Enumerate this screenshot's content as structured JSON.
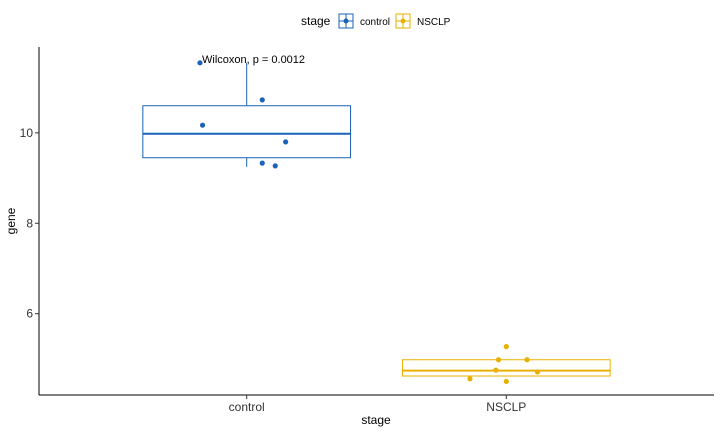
{
  "chart_data": {
    "type": "boxplot",
    "legend": {
      "title": "stage",
      "position": "top",
      "entries": [
        {
          "label": "control",
          "color": "#1a63b8"
        },
        {
          "label": "NSCLP",
          "color": "#e8b100"
        }
      ]
    },
    "xlabel": "stage",
    "ylabel": "gene",
    "categories": [
      "control",
      "NSCLP"
    ],
    "ylim": [
      4.2,
      11.9
    ],
    "yticks": [
      6,
      8,
      10
    ],
    "ytick_labels": [
      "6",
      "8",
      "10"
    ],
    "grid": false,
    "annotation": "Wilcoxon, p = 0.0012",
    "groups": [
      {
        "name": "control",
        "color": "#1a63b8",
        "box": {
          "min": 9.25,
          "q1": 9.45,
          "median": 9.98,
          "q3": 10.6,
          "max": 11.55
        },
        "points": [
          {
            "x": -0.18,
            "y": 11.55
          },
          {
            "x": -0.17,
            "y": 10.17
          },
          {
            "x": 0.06,
            "y": 10.73
          },
          {
            "x": 0.15,
            "y": 9.8
          },
          {
            "x": 0.06,
            "y": 9.33
          },
          {
            "x": 0.11,
            "y": 9.27
          }
        ]
      },
      {
        "name": "NSCLP",
        "color": "#e8b100",
        "box": {
          "min": 4.62,
          "q1": 4.62,
          "median": 4.74,
          "q3": 4.98,
          "max": 4.98
        },
        "points": [
          {
            "x": 0.0,
            "y": 5.27
          },
          {
            "x": -0.03,
            "y": 4.98
          },
          {
            "x": 0.08,
            "y": 4.98
          },
          {
            "x": -0.04,
            "y": 4.75
          },
          {
            "x": 0.12,
            "y": 4.71
          },
          {
            "x": -0.14,
            "y": 4.56
          },
          {
            "x": 0.0,
            "y": 4.5
          }
        ]
      }
    ]
  }
}
